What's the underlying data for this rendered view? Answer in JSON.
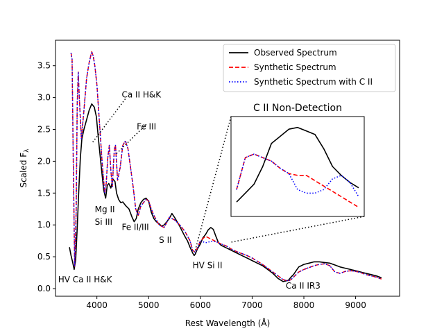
{
  "chart_data": {
    "type": "line",
    "xlabel": "Rest Wavelength (Å)",
    "ylabel": "Scaled F",
    "ylabel_subscript": "λ",
    "xlim": [
      3200,
      9850
    ],
    "ylim": [
      -0.12,
      3.9
    ],
    "x_ticks": [
      4000,
      5000,
      6000,
      7000,
      8000,
      9000
    ],
    "x_tick_labels": [
      "4000",
      "5000",
      "6000",
      "7000",
      "8000",
      "9000"
    ],
    "y_ticks": [
      0.0,
      0.5,
      1.0,
      1.5,
      2.0,
      2.5,
      3.0,
      3.5
    ],
    "y_tick_labels": [
      "0.0",
      "0.5",
      "1.0",
      "1.5",
      "2.0",
      "2.5",
      "3.0",
      "3.5"
    ],
    "grid": false,
    "legend_position": "top-right",
    "series": [
      {
        "name": "Observed Spectrum",
        "color": "#000000",
        "style": "solid",
        "x": [
          3470,
          3500,
          3530,
          3560,
          3590,
          3620,
          3650,
          3680,
          3710,
          3750,
          3800,
          3850,
          3900,
          3950,
          3990,
          4030,
          4080,
          4130,
          4170,
          4200,
          4230,
          4270,
          4310,
          4350,
          4380,
          4420,
          4460,
          4500,
          4560,
          4620,
          4680,
          4720,
          4760,
          4800,
          4850,
          4900,
          4950,
          5000,
          5050,
          5100,
          5150,
          5200,
          5250,
          5300,
          5350,
          5400,
          5450,
          5500,
          5550,
          5600,
          5650,
          5700,
          5750,
          5800,
          5850,
          5880,
          5900,
          5940,
          6000,
          6050,
          6100,
          6150,
          6200,
          6250,
          6300,
          6350,
          6400,
          6450,
          6500,
          6600,
          6700,
          6800,
          6900,
          7000,
          7100,
          7200,
          7300,
          7400,
          7500,
          7600,
          7700,
          7750,
          7800,
          7850,
          7900,
          8000,
          8100,
          8200,
          8300,
          8400,
          8500,
          8600,
          8700,
          8800,
          8900,
          9000,
          9100,
          9200,
          9300,
          9400,
          9500
        ],
        "values": [
          0.65,
          0.52,
          0.42,
          0.3,
          0.45,
          0.95,
          1.55,
          2.05,
          2.35,
          2.5,
          2.65,
          2.8,
          2.9,
          2.85,
          2.7,
          2.35,
          1.95,
          1.55,
          1.42,
          1.62,
          1.65,
          1.58,
          1.72,
          1.68,
          1.5,
          1.4,
          1.35,
          1.36,
          1.3,
          1.25,
          1.12,
          1.05,
          1.1,
          1.25,
          1.35,
          1.4,
          1.42,
          1.37,
          1.2,
          1.1,
          1.05,
          1.02,
          0.98,
          1.0,
          1.05,
          1.1,
          1.18,
          1.12,
          1.05,
          0.98,
          0.9,
          0.82,
          0.75,
          0.65,
          0.56,
          0.52,
          0.54,
          0.62,
          0.7,
          0.8,
          0.85,
          0.92,
          0.96,
          0.93,
          0.82,
          0.72,
          0.68,
          0.66,
          0.64,
          0.6,
          0.56,
          0.52,
          0.48,
          0.44,
          0.4,
          0.36,
          0.3,
          0.24,
          0.16,
          0.11,
          0.13,
          0.18,
          0.22,
          0.28,
          0.34,
          0.38,
          0.4,
          0.42,
          0.42,
          0.41,
          0.4,
          0.37,
          0.34,
          0.32,
          0.3,
          0.28,
          0.26,
          0.24,
          0.22,
          0.2,
          0.17
        ]
      },
      {
        "name": "Synthetic Spectrum",
        "color": "#ff0000",
        "style": "dashed",
        "x": [
          3500,
          3520,
          3540,
          3570,
          3600,
          3620,
          3640,
          3660,
          3700,
          3750,
          3800,
          3850,
          3900,
          3930,
          3960,
          4000,
          4050,
          4100,
          4150,
          4180,
          4210,
          4240,
          4270,
          4300,
          4320,
          4340,
          4360,
          4400,
          4450,
          4500,
          4550,
          4600,
          4650,
          4700,
          4750,
          4800,
          4850,
          4900,
          4950,
          5000,
          5050,
          5100,
          5200,
          5300,
          5400,
          5500,
          5600,
          5700,
          5800,
          5850,
          5900,
          5950,
          6000,
          6100,
          6200,
          6300,
          6400,
          6500,
          6600,
          6700,
          6800,
          6900,
          7000,
          7100,
          7200,
          7300,
          7400,
          7500,
          7600,
          7700,
          7750,
          7800,
          7850,
          7900,
          8000,
          8100,
          8200,
          8300,
          8400,
          8500,
          8600,
          8700,
          8800,
          8900,
          9000,
          9100,
          9200,
          9300,
          9400,
          9500
        ],
        "values": [
          3.7,
          3.6,
          2.2,
          0.35,
          1.2,
          2.9,
          3.4,
          3.0,
          2.35,
          2.8,
          3.3,
          3.55,
          3.72,
          3.65,
          3.5,
          3.2,
          2.6,
          2.0,
          1.5,
          1.65,
          2.05,
          2.25,
          1.85,
          1.6,
          1.95,
          2.2,
          2.25,
          1.7,
          1.9,
          2.25,
          2.32,
          2.2,
          1.9,
          1.6,
          1.25,
          1.15,
          1.3,
          1.35,
          1.4,
          1.38,
          1.25,
          1.15,
          1.0,
          0.96,
          1.12,
          1.08,
          1.0,
          0.9,
          0.75,
          0.6,
          0.57,
          0.65,
          0.75,
          0.82,
          0.78,
          0.74,
          0.7,
          0.67,
          0.62,
          0.58,
          0.55,
          0.52,
          0.48,
          0.43,
          0.38,
          0.32,
          0.26,
          0.2,
          0.14,
          0.12,
          0.14,
          0.18,
          0.22,
          0.26,
          0.3,
          0.33,
          0.36,
          0.38,
          0.39,
          0.36,
          0.26,
          0.24,
          0.27,
          0.28,
          0.27,
          0.25,
          0.22,
          0.2,
          0.18,
          0.15
        ]
      },
      {
        "name": "Synthetic Spectrum with C II",
        "color": "#0000ff",
        "style": "dotted",
        "x": [
          3500,
          3520,
          3540,
          3570,
          3600,
          3620,
          3640,
          3660,
          3700,
          3750,
          3800,
          3850,
          3900,
          3930,
          3960,
          4000,
          4050,
          4100,
          4150,
          4180,
          4210,
          4240,
          4270,
          4300,
          4320,
          4340,
          4360,
          4400,
          4450,
          4500,
          4550,
          4600,
          4650,
          4700,
          4750,
          4800,
          4850,
          4900,
          4950,
          5000,
          5050,
          5100,
          5200,
          5300,
          5400,
          5500,
          5600,
          5700,
          5800,
          5850,
          5900,
          5950,
          6000,
          6100,
          6200,
          6300,
          6400,
          6500,
          6600,
          6700,
          6800,
          6900,
          7000,
          7100,
          7200,
          7300,
          7400,
          7500,
          7600,
          7700,
          7750,
          7800,
          7850,
          7900,
          8000,
          8100,
          8200,
          8300,
          8400,
          8500,
          8600,
          8700,
          8800,
          8900,
          9000,
          9100,
          9200,
          9300,
          9400,
          9500
        ],
        "values": [
          3.7,
          3.6,
          2.2,
          0.35,
          1.2,
          2.9,
          3.4,
          3.0,
          2.35,
          2.8,
          3.3,
          3.55,
          3.72,
          3.65,
          3.5,
          3.2,
          2.6,
          2.0,
          1.5,
          1.65,
          2.05,
          2.25,
          1.85,
          1.6,
          1.95,
          2.2,
          2.25,
          1.7,
          1.9,
          2.25,
          2.32,
          2.2,
          1.9,
          1.6,
          1.25,
          1.15,
          1.3,
          1.35,
          1.4,
          1.38,
          1.25,
          1.15,
          1.0,
          0.96,
          1.12,
          1.08,
          1.0,
          0.9,
          0.75,
          0.6,
          0.57,
          0.65,
          0.75,
          0.72,
          0.74,
          0.74,
          0.7,
          0.67,
          0.62,
          0.58,
          0.55,
          0.52,
          0.48,
          0.43,
          0.38,
          0.32,
          0.26,
          0.2,
          0.14,
          0.12,
          0.14,
          0.18,
          0.22,
          0.26,
          0.3,
          0.33,
          0.36,
          0.38,
          0.39,
          0.36,
          0.26,
          0.24,
          0.27,
          0.28,
          0.27,
          0.25,
          0.22,
          0.2,
          0.18,
          0.15
        ]
      }
    ],
    "annotations": [
      {
        "text": "Ca II H&K",
        "x": 4480,
        "y": 3.0
      },
      {
        "text": "Fe III",
        "x": 4770,
        "y": 2.5
      },
      {
        "text": "Mg II",
        "x": 3960,
        "y": 1.2
      },
      {
        "text": "Si III",
        "x": 3960,
        "y": 1.0
      },
      {
        "text": "Fe II/III",
        "x": 4480,
        "y": 0.92
      },
      {
        "text": "S II",
        "x": 5200,
        "y": 0.72
      },
      {
        "text": "HV Si II",
        "x": 5850,
        "y": 0.32
      },
      {
        "text": "HV Ca II H&K",
        "x": 3250,
        "y": 0.1
      },
      {
        "text": "Ca II IR3",
        "x": 7650,
        "y": 0.0
      }
    ],
    "callouts": [
      {
        "from": [
          3920,
          2.3
        ],
        "to": [
          4550,
          2.98
        ]
      },
      {
        "from": [
          4380,
          2.12
        ],
        "to": [
          4980,
          2.6
        ]
      }
    ],
    "inset": {
      "title": "C II Non-Detection",
      "zoom_region": [
        5900,
        6600
      ],
      "observed_y": [
        0.55,
        0.6,
        0.65,
        0.75,
        0.88,
        0.92,
        0.96,
        0.97,
        0.95,
        0.93,
        0.85,
        0.75,
        0.7,
        0.66,
        0.63
      ],
      "synthetic_y": [
        0.62,
        0.8,
        0.82,
        0.8,
        0.78,
        0.74,
        0.71,
        0.7,
        0.7,
        0.67,
        0.64,
        0.61,
        0.58,
        0.55,
        0.52
      ],
      "synthetic_cii_y": [
        0.62,
        0.8,
        0.82,
        0.8,
        0.78,
        0.74,
        0.71,
        0.62,
        0.6,
        0.6,
        0.62,
        0.68,
        0.7,
        0.66,
        0.58
      ]
    }
  }
}
